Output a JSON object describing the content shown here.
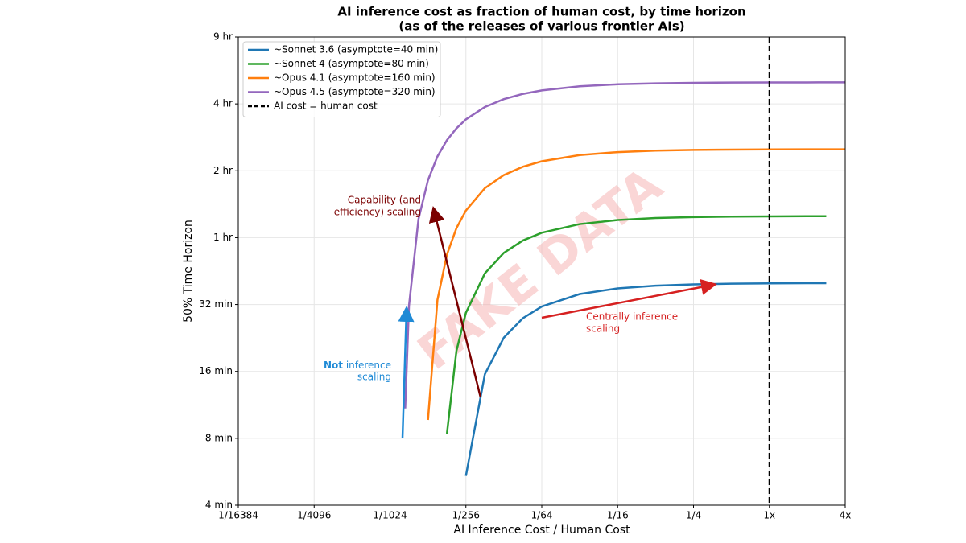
{
  "chart_data": {
    "type": "line",
    "title": "AI inference cost as fraction of human cost, by time horizon",
    "subtitle": "(as of the releases of various frontier AIs)",
    "x_label": "AI Inference Cost / Human Cost",
    "y_label": "50% Time Horizon",
    "x_scale": "log",
    "y_scale": "log",
    "grid": true,
    "legend": "upper left",
    "x": [
      0.0012886,
      0.0013811,
      0.0016424,
      0.001953125,
      0.0023227,
      0.0027621,
      0.0032847,
      0.00390625,
      0.0055243,
      0.0078125,
      0.0110485,
      0.015625,
      0.03125,
      0.0625,
      0.125,
      0.25,
      0.5,
      1,
      2,
      2.8284,
      4
    ],
    "series": [
      {
        "name": "~Sonnet 3.6 (asymptote=40 min)",
        "color": "#1f77b4",
        "values": [
          null,
          null,
          null,
          null,
          null,
          null,
          null,
          5.42,
          15.55,
          22.71,
          27.77,
          31.35,
          35.68,
          37.84,
          38.92,
          39.46,
          39.73,
          39.86,
          39.93,
          39.95,
          null
        ]
      },
      {
        "name": "~Sonnet 4 (asymptote=80 min)",
        "color": "#2ca02c",
        "values": [
          null,
          null,
          null,
          null,
          null,
          8.4,
          19.78,
          29.37,
          44.2,
          54.69,
          62.1,
          67.34,
          73.67,
          76.84,
          78.42,
          79.21,
          79.6,
          79.8,
          79.9,
          79.93,
          null
        ]
      },
      {
        "name": "~Opus 4.1 (asymptote=160 min)",
        "color": "#ff7f0e",
        "values": [
          null,
          null,
          null,
          9.68,
          33.6,
          53.7,
          70.6,
          84.8,
          106.9,
          122.4,
          133.4,
          141.2,
          150.6,
          155.3,
          157.65,
          158.83,
          159.41,
          159.71,
          159.85,
          159.9,
          159.93
        ]
      },
      {
        "name": "~Opus 4.5 (asymptote=320 min)",
        "color": "#9467bd",
        "values": [
          10.9,
          31.6,
          77.5,
          116.1,
          148.5,
          175.8,
          198.7,
          218.0,
          247.9,
          269.0,
          283.9,
          294.5,
          307.3,
          313.6,
          316.8,
          318.4,
          319.2,
          319.6,
          319.8,
          319.9,
          319.95
        ]
      }
    ],
    "reference_line": {
      "name": "AI cost = human cost",
      "x": 1,
      "color": "#000000"
    },
    "xlim": [
      6.103515625e-05,
      4
    ],
    "xticks": [
      {
        "value": 6.103515625e-05,
        "label": "1/16384"
      },
      {
        "value": 0.000244140625,
        "label": "1/4096"
      },
      {
        "value": 0.0009765625,
        "label": "1/1024"
      },
      {
        "value": 0.00390625,
        "label": "1/256"
      },
      {
        "value": 0.015625,
        "label": "1/64"
      },
      {
        "value": 0.0625,
        "label": "1/16"
      },
      {
        "value": 0.25,
        "label": "1/4"
      },
      {
        "value": 1,
        "label": "1x"
      },
      {
        "value": 4,
        "label": "4x"
      }
    ],
    "ylim": [
      4,
      512
    ],
    "yticks": [
      {
        "value": 4,
        "label": "4 min"
      },
      {
        "value": 8,
        "label": "8 min"
      },
      {
        "value": 16,
        "label": "16 min"
      },
      {
        "value": 32,
        "label": "32 min"
      },
      {
        "value": 64,
        "label": "1 hr"
      },
      {
        "value": 128,
        "label": "2 hr"
      },
      {
        "value": 256,
        "label": "4 hr"
      },
      {
        "value": 512,
        "label": "9 hr"
      }
    ],
    "annotations": [
      {
        "text_lines": [
          "Capability (and",
          "efficiency) scaling"
        ],
        "color": "#7b0000"
      },
      {
        "bold": "Not",
        "text_lines": [
          "inference",
          "scaling"
        ],
        "color": "#1f8ad6"
      },
      {
        "text_lines": [
          "Centrally inference",
          "scaling"
        ],
        "color": "#d62020"
      }
    ],
    "watermark": "FAKE DATA"
  }
}
